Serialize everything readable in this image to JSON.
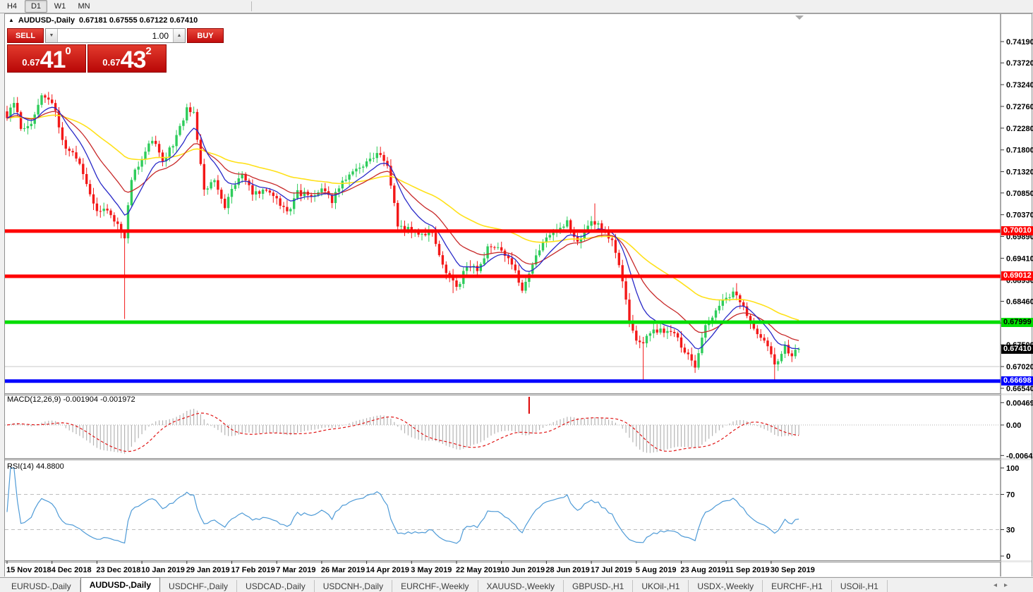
{
  "toolbar": {
    "timeframes": [
      {
        "label": "H4",
        "active": false
      },
      {
        "label": "D1",
        "active": true
      },
      {
        "label": "W1",
        "active": false
      },
      {
        "label": "MN",
        "active": false
      }
    ]
  },
  "header": {
    "collapse_icon": "▲",
    "symbol": "AUDUSD-,Daily",
    "ohlc": "0.67181 0.67555 0.67122 0.67410"
  },
  "trade_panel": {
    "sell_label": "SELL",
    "buy_label": "BUY",
    "volume": "1.00",
    "spinner_down": "▼",
    "spinner_up": "▲",
    "sell_price_small": "0.67",
    "sell_price_big": "41",
    "sell_price_sup": "0",
    "buy_price_small": "0.67",
    "buy_price_big": "43",
    "buy_price_sup": "2"
  },
  "macd_panel": {
    "label": "MACD(12,26,9) -0.001904 -0.001972",
    "axis": [
      "0.004696",
      "0.00",
      "-0.006427"
    ]
  },
  "rsi_panel": {
    "label": "RSI(14) 44.8800",
    "axis": [
      "100",
      "70",
      "30",
      "0"
    ]
  },
  "tab_arrows": {
    "left": "◂",
    "right": "▸"
  },
  "tabs": [
    {
      "label": "EURUSD-,Daily",
      "active": false
    },
    {
      "label": "AUDUSD-,Daily",
      "active": true
    },
    {
      "label": "USDCHF-,Daily",
      "active": false
    },
    {
      "label": "USDCAD-,Daily",
      "active": false
    },
    {
      "label": "USDCNH-,Daily",
      "active": false
    },
    {
      "label": "EURCHF-,Weekly",
      "active": false
    },
    {
      "label": "XAUUSD-,Weekly",
      "active": false
    },
    {
      "label": "GBPUSD-,H1",
      "active": false
    },
    {
      "label": "UKOil-,H1",
      "active": false
    },
    {
      "label": "USDX-,Weekly",
      "active": false
    },
    {
      "label": "EURCHF-,H1",
      "active": false
    },
    {
      "label": "USOil-,H1",
      "active": false
    }
  ],
  "chart_data": {
    "type": "candlestick",
    "symbol": "AUDUSD-",
    "timeframe": "Daily",
    "title": "AUDUSD-,Daily",
    "current_bid": 0.6741,
    "candle_count": 230,
    "y_ticks": [
      0.7419,
      0.7372,
      0.7324,
      0.7276,
      0.7228,
      0.718,
      0.7132,
      0.7085,
      0.7037,
      0.6989,
      0.6941,
      0.6893,
      0.6846,
      0.6798,
      0.675,
      0.6702,
      0.6654
    ],
    "x_dates": [
      "15 Nov 2018",
      "4 Dec 2018",
      "23 Dec 2018",
      "10 Jan 2019",
      "29 Jan 2019",
      "17 Feb 2019",
      "7 Mar 2019",
      "26 Mar 2019",
      "14 Apr 2019",
      "3 May 2019",
      "22 May 2019",
      "10 Jun 2019",
      "28 Jun 2019",
      "17 Jul 2019",
      "5 Aug 2019",
      "23 Aug 2019",
      "11 Sep 2019",
      "30 Sep 2019"
    ],
    "candles_per_tick": 13,
    "price_anchors": [
      [
        0,
        0.725
      ],
      [
        2,
        0.729
      ],
      [
        4,
        0.7225
      ],
      [
        7,
        0.724
      ],
      [
        10,
        0.73
      ],
      [
        12,
        0.7295
      ],
      [
        14,
        0.7262
      ],
      [
        17,
        0.7178
      ],
      [
        20,
        0.7165
      ],
      [
        23,
        0.7105
      ],
      [
        26,
        0.704
      ],
      [
        28,
        0.7052
      ],
      [
        31,
        0.7022
      ],
      [
        33,
        0.7
      ],
      [
        34,
        0.6988
      ],
      [
        36,
        0.712
      ],
      [
        39,
        0.7155
      ],
      [
        42,
        0.7205
      ],
      [
        45,
        0.7158
      ],
      [
        48,
        0.719
      ],
      [
        52,
        0.7272
      ],
      [
        54,
        0.7258
      ],
      [
        57,
        0.7092
      ],
      [
        60,
        0.7108
      ],
      [
        63,
        0.7052
      ],
      [
        65,
        0.7098
      ],
      [
        68,
        0.713
      ],
      [
        71,
        0.7082
      ],
      [
        74,
        0.7092
      ],
      [
        78,
        0.707
      ],
      [
        81,
        0.704
      ],
      [
        84,
        0.7088
      ],
      [
        87,
        0.7078
      ],
      [
        91,
        0.7092
      ],
      [
        94,
        0.7068
      ],
      [
        97,
        0.711
      ],
      [
        100,
        0.7128
      ],
      [
        104,
        0.7155
      ],
      [
        107,
        0.7174
      ],
      [
        110,
        0.7148
      ],
      [
        113,
        0.7016
      ],
      [
        117,
        0.7
      ],
      [
        120,
        0.6992
      ],
      [
        123,
        0.6996
      ],
      [
        126,
        0.6928
      ],
      [
        130,
        0.6872
      ],
      [
        133,
        0.6925
      ],
      [
        136,
        0.6916
      ],
      [
        139,
        0.6962
      ],
      [
        143,
        0.6958
      ],
      [
        146,
        0.6928
      ],
      [
        149,
        0.6874
      ],
      [
        152,
        0.6926
      ],
      [
        156,
        0.699
      ],
      [
        159,
        0.7002
      ],
      [
        162,
        0.702
      ],
      [
        165,
        0.6978
      ],
      [
        169,
        0.7025
      ],
      [
        172,
        0.7006
      ],
      [
        175,
        0.6976
      ],
      [
        178,
        0.6892
      ],
      [
        180,
        0.6802
      ],
      [
        182,
        0.6762
      ],
      [
        184,
        0.6758
      ],
      [
        187,
        0.6786
      ],
      [
        190,
        0.6776
      ],
      [
        193,
        0.6782
      ],
      [
        195,
        0.6748
      ],
      [
        199,
        0.6702
      ],
      [
        202,
        0.6788
      ],
      [
        205,
        0.683
      ],
      [
        208,
        0.6856
      ],
      [
        210,
        0.6866
      ],
      [
        213,
        0.6836
      ],
      [
        216,
        0.6788
      ],
      [
        219,
        0.6762
      ],
      [
        220,
        0.6752
      ],
      [
        222,
        0.6706
      ],
      [
        223,
        0.6716
      ],
      [
        225,
        0.6746
      ],
      [
        227,
        0.6726
      ],
      [
        229,
        0.6741
      ]
    ],
    "wick_overrides": [
      {
        "i": 34,
        "low": 0.6807
      },
      {
        "i": 129,
        "low": 0.6864
      },
      {
        "i": 170,
        "high": 0.7062
      },
      {
        "i": 184,
        "low": 0.667
      },
      {
        "i": 199,
        "low": 0.6688
      },
      {
        "i": 211,
        "high": 0.6886
      },
      {
        "i": 222,
        "low": 0.6671
      }
    ],
    "horizontal_lines": [
      {
        "price": 0.7001,
        "color": "#ff0000",
        "label": "0.70010",
        "text_color": "#ffffff"
      },
      {
        "price": 0.69012,
        "color": "#ff0000",
        "label": "0.69012",
        "text_color": "#ffffff"
      },
      {
        "price": 0.67999,
        "color": "#00dd00",
        "label": "0.67999",
        "text_color": "#000000"
      },
      {
        "price": 0.66698,
        "color": "#0000ff",
        "label": "0.66698",
        "text_color": "#ffffff"
      }
    ],
    "current_price_tag": {
      "price": 0.6741,
      "label": "0.67410",
      "color": "#000000",
      "text_color": "#ffffff"
    },
    "gray_reference_line": 0.6702,
    "colors": {
      "bull": "#2ecc5b",
      "bear": "#f31818",
      "ma_fast": "#2929c8",
      "ma_mid": "#c82a2a",
      "ma_slow": "#ffe11a",
      "macd_bars": "#b4b4b4",
      "macd_signal": "#e01616",
      "rsi": "#4f9bd7"
    },
    "moving_averages": [
      {
        "period": 10
      },
      {
        "period": 21
      },
      {
        "period": 55
      }
    ],
    "macd": {
      "fast": 12,
      "slow": 26,
      "signal": 9,
      "value": -0.001904,
      "signal_value": -0.001972,
      "axis_values": [
        0.004696,
        0.0,
        -0.006427
      ],
      "marker_index": 151
    },
    "rsi": {
      "period": 14,
      "value": 44.88,
      "levels": [
        70,
        30
      ],
      "axis_values": [
        100,
        70,
        30,
        0
      ]
    }
  }
}
